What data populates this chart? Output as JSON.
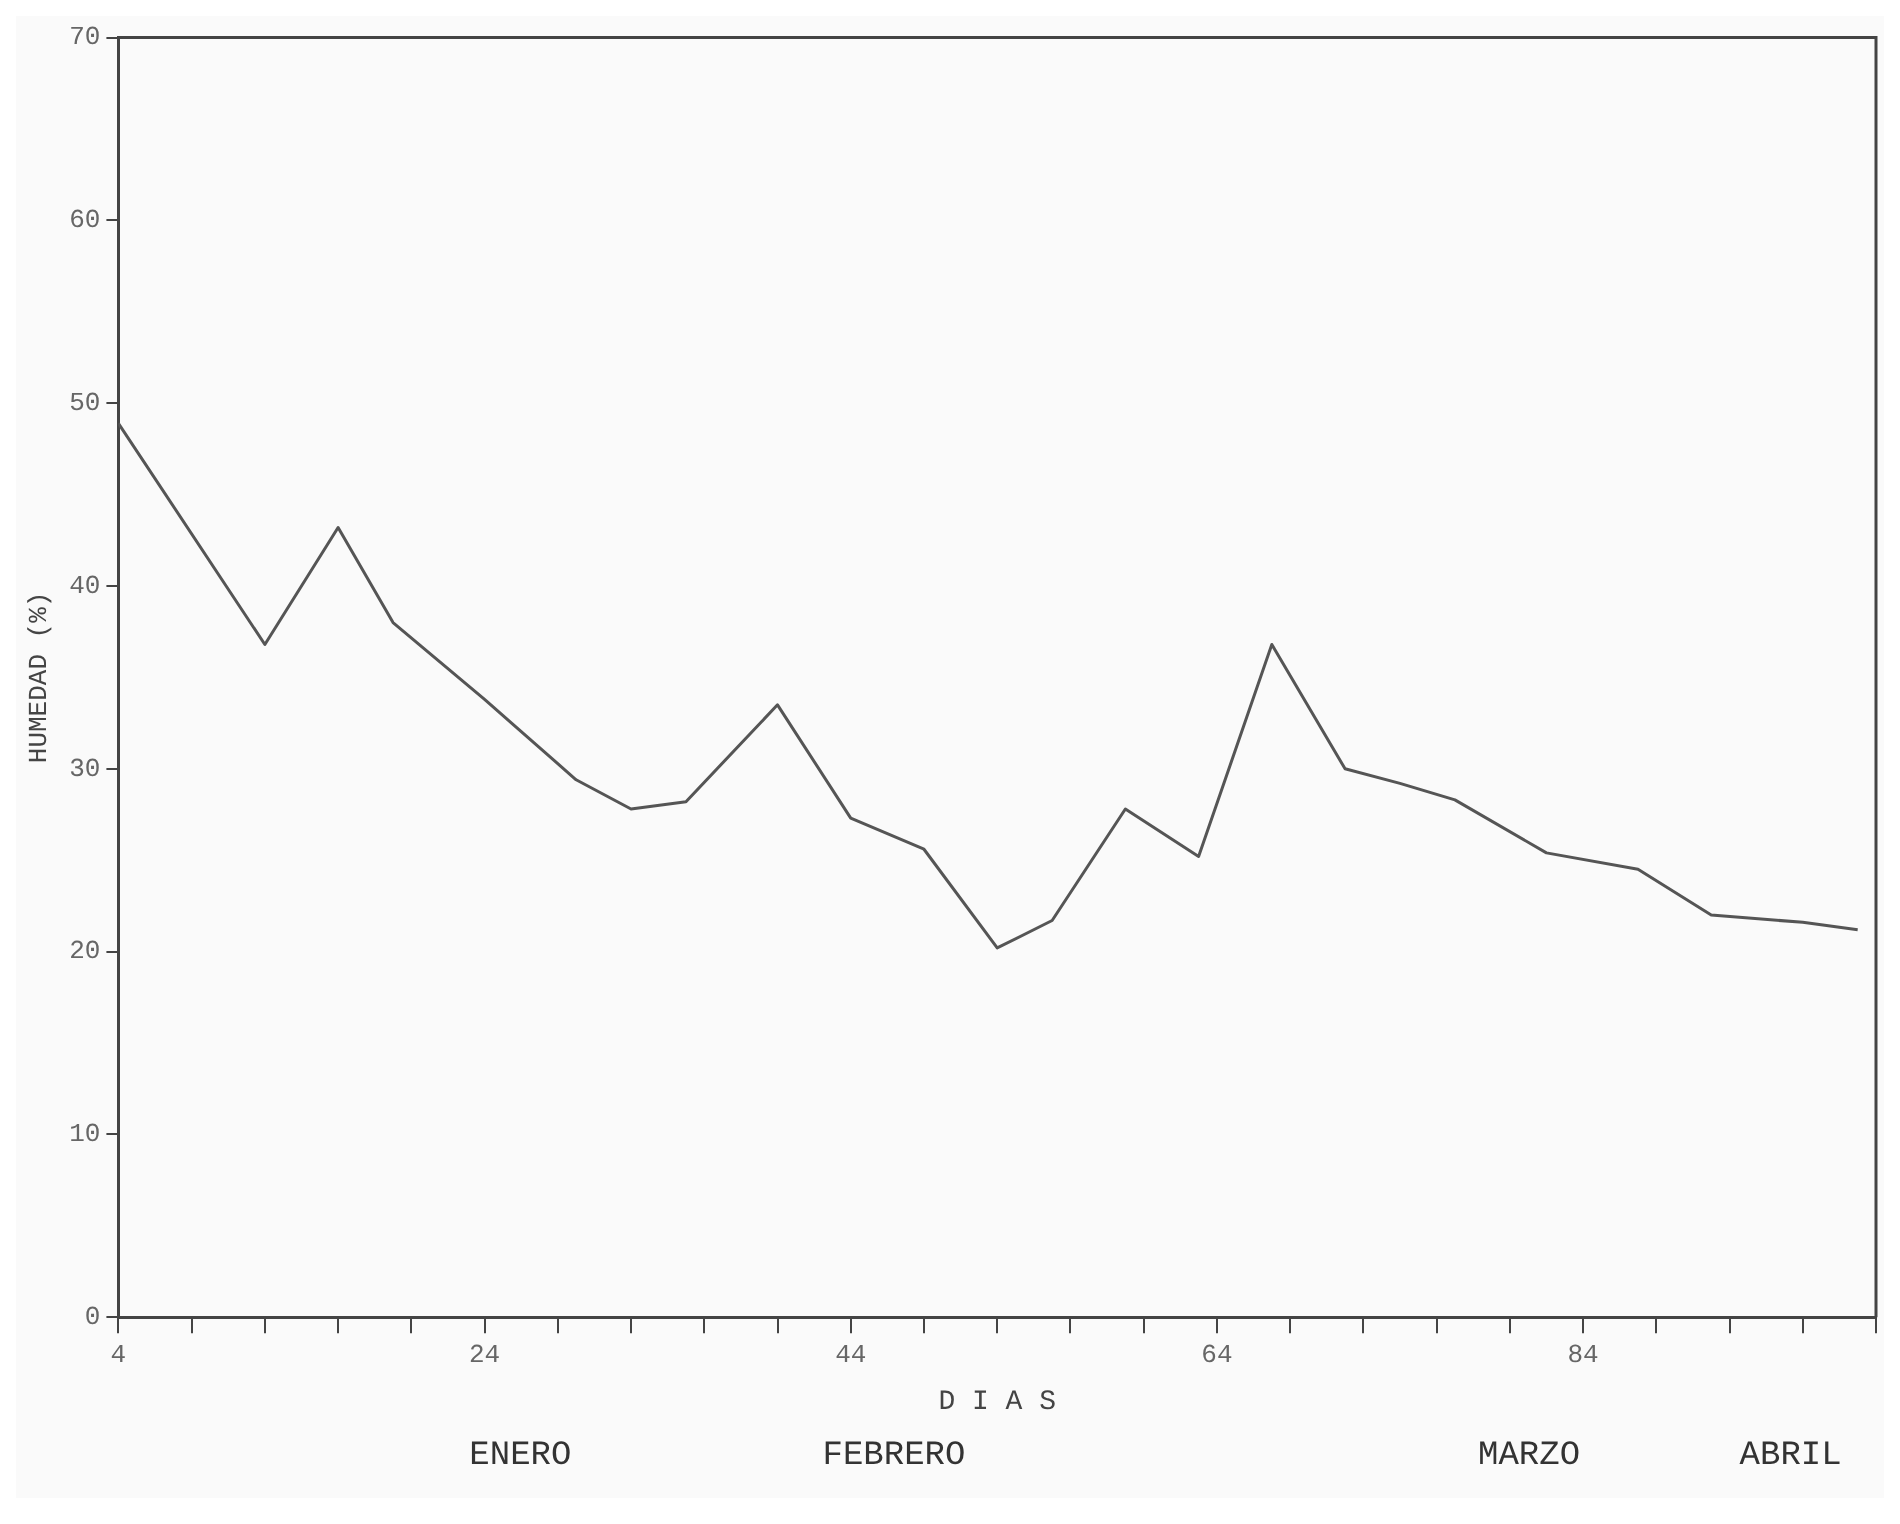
{
  "chart_data": {
    "type": "line",
    "xlabel": "D I A S",
    "ylabel": "HUMEDAD (%)",
    "x": [
      4,
      12,
      16,
      19,
      24,
      29,
      32,
      35,
      40,
      44,
      48,
      52,
      55,
      59,
      63,
      67,
      71,
      74,
      77,
      82,
      87,
      91,
      96,
      99
    ],
    "series": [
      {
        "color": "#555555",
        "values": [
          48.9,
          36.8,
          43.2,
          38.0,
          33.8,
          29.4,
          27.8,
          28.2,
          33.5,
          27.3,
          25.6,
          20.2,
          21.7,
          27.8,
          25.2,
          36.8,
          30.0,
          29.2,
          28.3,
          25.4,
          24.5,
          22.0,
          21.6,
          21.2
        ]
      }
    ],
    "xlim": [
      4,
      100
    ],
    "xticks": [
      4,
      {
        "value": 8,
        "label": null
      },
      {
        "value": 12,
        "label": null
      },
      {
        "value": 16,
        "label": null
      },
      {
        "value": 20,
        "label": null
      },
      24,
      {
        "value": 28,
        "label": null
      },
      {
        "value": 32,
        "label": null
      },
      {
        "value": 36,
        "label": null
      },
      {
        "value": 40,
        "label": null
      },
      44,
      {
        "value": 48,
        "label": null
      },
      {
        "value": 52,
        "label": null
      },
      {
        "value": 56,
        "label": null
      },
      {
        "value": 60,
        "label": null
      },
      64,
      {
        "value": 68,
        "label": null
      },
      {
        "value": 72,
        "label": null
      },
      {
        "value": 76,
        "label": null
      },
      {
        "value": 80,
        "label": null
      },
      84,
      {
        "value": 88,
        "label": null
      },
      {
        "value": 92,
        "label": null
      },
      {
        "value": 96,
        "label": null
      },
      {
        "value": 100,
        "label": null
      }
    ],
    "ylim": [
      0,
      70
    ],
    "yticks": [
      0,
      10,
      20,
      30,
      40,
      50,
      60,
      70
    ],
    "grid": false,
    "legend": false,
    "marker": "none",
    "line_style": "solid",
    "annotations": [
      "ENERO",
      "FEBRERO",
      "MARZO",
      "ABRIL"
    ]
  }
}
